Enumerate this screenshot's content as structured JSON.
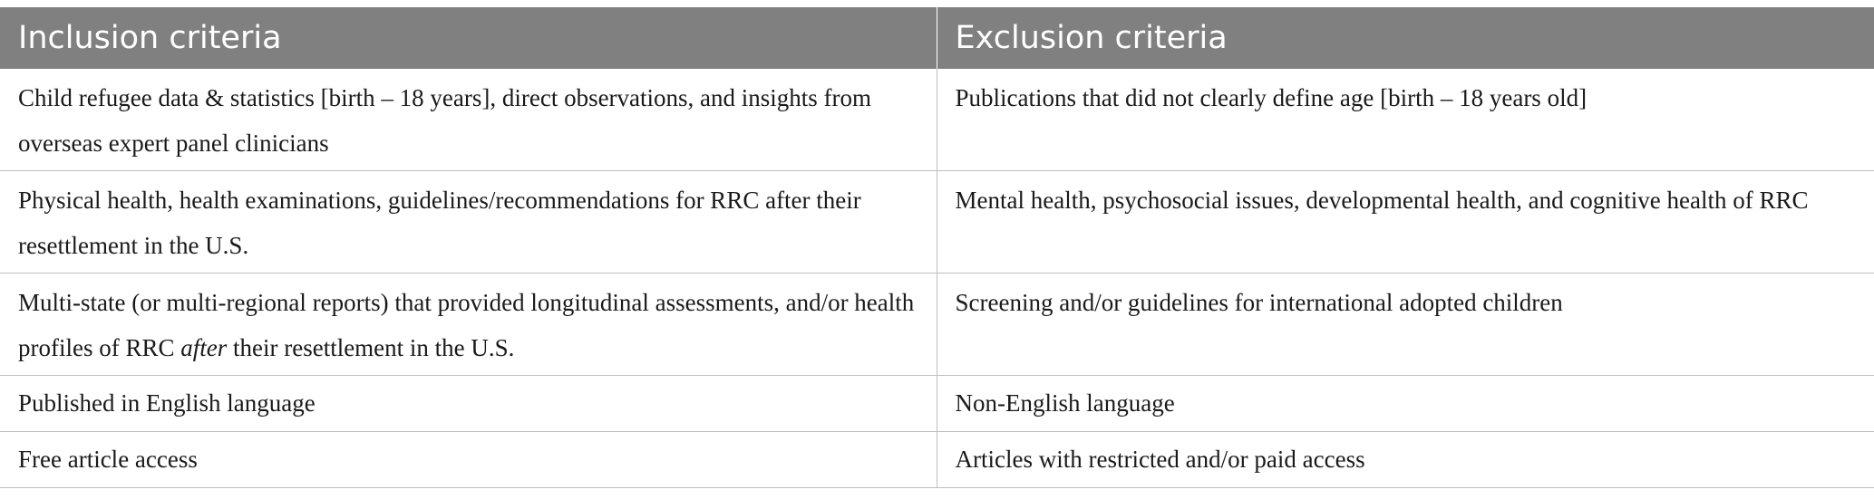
{
  "table": {
    "headers": [
      "Inclusion criteria",
      "Exclusion criteria"
    ],
    "rows": [
      {
        "inclusion": "Child refugee data & statistics [birth – 18 years], direct observations, and insights from overseas expert panel clinicians",
        "exclusion": "Publications that did not clearly define age [birth – 18 years old]"
      },
      {
        "inclusion": "Physical health, health examinations, guidelines/recommendations for RRC after their resettlement in the U.S.",
        "exclusion": "Mental health, psychosocial issues, developmental health, and cognitive health of RRC"
      },
      {
        "inclusion_before": "Multi-state (or multi-regional reports) that provided longitudinal assessments, and/or health profiles of RRC ",
        "inclusion_emphasis": "after",
        "inclusion_after": " their resettlement in the U.S.",
        "exclusion": "Screening and/or guidelines for international adopted children"
      },
      {
        "inclusion": "Published in English language",
        "exclusion": "Non-English language"
      },
      {
        "inclusion": "Free article access",
        "exclusion": "Articles with restricted and/or paid access"
      }
    ]
  }
}
